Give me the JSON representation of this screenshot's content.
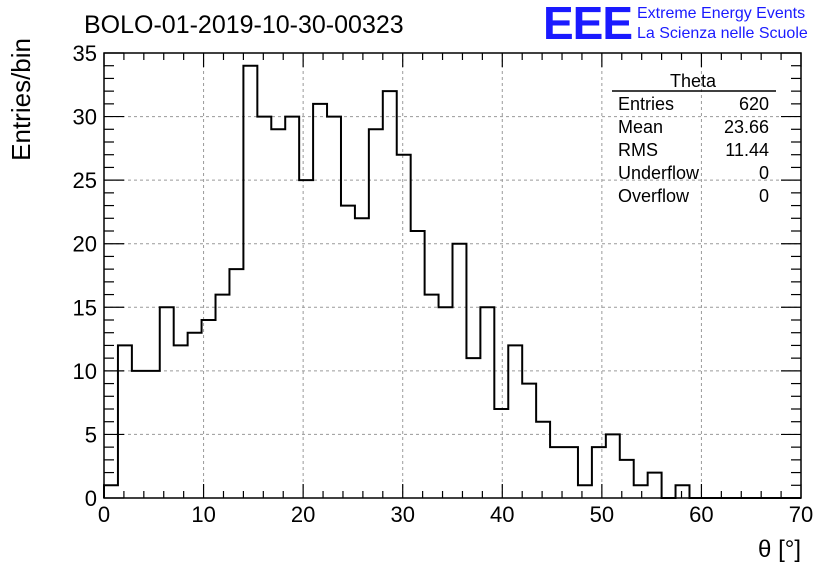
{
  "header": {
    "title": "BOLO-01-2019-10-30-00323",
    "logo": {
      "mark": "EEE",
      "line1": "Extreme Energy Events",
      "line2": "La Scienza nelle Scuole"
    }
  },
  "stats": {
    "name": "Theta",
    "rows": [
      {
        "label": "Entries",
        "value": "620"
      },
      {
        "label": "Mean",
        "value": "23.66"
      },
      {
        "label": "RMS",
        "value": "11.44"
      },
      {
        "label": "Underflow",
        "value": "0"
      },
      {
        "label": "Overflow",
        "value": "0"
      }
    ]
  },
  "chart_data": {
    "type": "histogram",
    "xlabel": "θ [°]",
    "ylabel": "Entries/bin",
    "xlim": [
      0,
      70
    ],
    "ylim": [
      0,
      35
    ],
    "xticks": [
      0,
      10,
      20,
      30,
      40,
      50,
      60,
      70
    ],
    "yticks": [
      0,
      5,
      10,
      15,
      20,
      25,
      30,
      35
    ],
    "grid": true,
    "bin_width": 1.4,
    "bin_start": 0,
    "values": [
      1,
      12,
      10,
      10,
      15,
      12,
      13,
      14,
      16,
      18,
      34,
      30,
      29,
      30,
      25,
      31,
      30,
      23,
      22,
      29,
      32,
      27,
      21,
      16,
      15,
      20,
      11,
      15,
      7,
      12,
      9,
      6,
      4,
      4,
      1,
      4,
      5,
      3,
      1,
      2,
      0,
      1,
      0,
      0,
      0,
      0,
      0,
      0,
      0,
      0
    ]
  }
}
